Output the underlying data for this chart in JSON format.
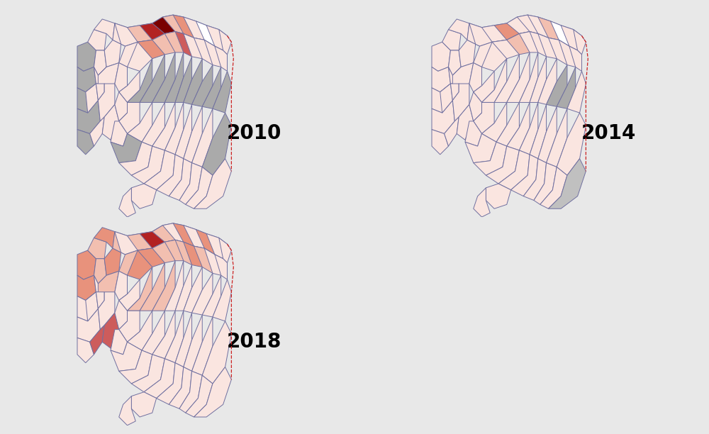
{
  "title_2010": "2010",
  "title_2014": "2014",
  "title_2018": "2018",
  "title_fontsize": 20,
  "title_fontweight": "bold",
  "background_color": "#e8e8e8",
  "panel_background": "#ffffff",
  "panel_edge_color": "#bbbbbb",
  "colors": {
    "very_dark_red": "#7A0000",
    "dark_red": "#B22222",
    "medium_red": "#CD5C5C",
    "salmon": "#E8927C",
    "light_salmon": "#F2BFB0",
    "very_light": "#FAE5E0",
    "white_pink": "#FDF0EE",
    "gray": "#AAAAAA",
    "light_gray": "#C0C0C0",
    "white": "#FFFFFF",
    "border_color": "#7070A0",
    "dashed_border": "#CC2222"
  }
}
